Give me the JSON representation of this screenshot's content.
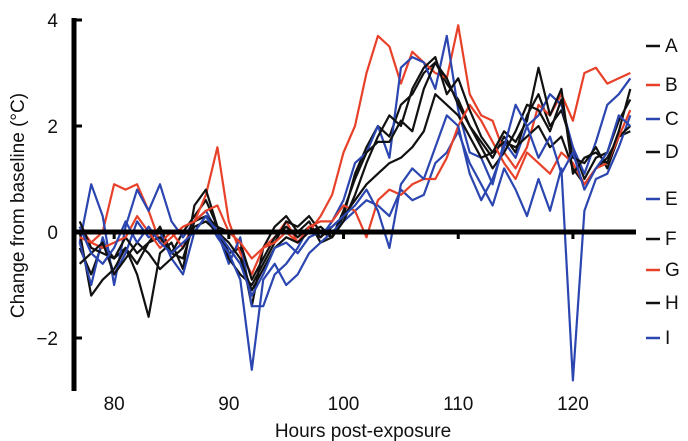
{
  "chart_data": {
    "type": "line",
    "title": "",
    "xlabel": "Hours post-exposure",
    "ylabel": "Change from baseline (°C)",
    "xlim": [
      76.5,
      125.5
    ],
    "ylim": [
      -3,
      4
    ],
    "xticks": [
      80,
      90,
      100,
      110,
      120
    ],
    "yticks": [
      -2,
      0,
      2,
      4
    ],
    "ytick_labels": [
      "−2",
      "0",
      "2",
      "4"
    ],
    "grid": false,
    "legend_position": "right",
    "x": [
      77,
      78,
      79,
      80,
      81,
      82,
      83,
      84,
      85,
      86,
      87,
      88,
      89,
      90,
      91,
      92,
      93,
      94,
      95,
      96,
      97,
      98,
      99,
      100,
      101,
      102,
      103,
      104,
      105,
      106,
      107,
      108,
      109,
      110,
      111,
      112,
      113,
      114,
      115,
      116,
      117,
      118,
      119,
      120,
      121,
      122,
      123,
      124,
      125
    ],
    "series": [
      {
        "name": "A",
        "color": "#111111",
        "values": [
          -0.3,
          -0.8,
          -0.2,
          -0.5,
          -0.3,
          -0.6,
          -0.2,
          0.1,
          -0.4,
          0.0,
          0.3,
          0.6,
          0.1,
          -0.4,
          -0.3,
          -1.4,
          -0.3,
          0.1,
          0.3,
          0.0,
          0.2,
          -0.2,
          -0.1,
          0.3,
          1.1,
          1.6,
          2.0,
          1.8,
          2.4,
          2.6,
          3.0,
          3.2,
          2.8,
          2.5,
          2.0,
          1.7,
          1.4,
          1.8,
          1.5,
          2.2,
          2.6,
          2.0,
          2.3,
          1.6,
          1.0,
          1.4,
          1.5,
          2.1,
          2.5
        ]
      },
      {
        "name": "B",
        "color": "#e8412a",
        "values": [
          0.1,
          -0.2,
          0.0,
          0.9,
          0.8,
          0.9,
          0.4,
          -0.2,
          0.0,
          -0.3,
          0.2,
          0.7,
          1.6,
          0.2,
          -0.4,
          -0.8,
          -0.3,
          -0.1,
          0.2,
          -0.2,
          0.0,
          0.3,
          0.7,
          1.5,
          2.0,
          3.0,
          3.7,
          3.5,
          2.8,
          3.4,
          3.2,
          3.0,
          2.9,
          3.9,
          2.6,
          2.2,
          2.1,
          1.5,
          1.2,
          1.6,
          2.4,
          2.2,
          2.6,
          2.1,
          3.0,
          3.1,
          2.8,
          2.9,
          3.0
        ]
      },
      {
        "name": "C",
        "color": "#2b46b0",
        "values": [
          -0.2,
          0.9,
          0.3,
          -1.0,
          0.1,
          0.8,
          0.4,
          0.9,
          0.2,
          -0.1,
          0.2,
          0.4,
          0.0,
          -0.6,
          -0.1,
          -1.4,
          -1.4,
          -0.8,
          -0.6,
          -0.3,
          0.1,
          -0.1,
          0.2,
          0.6,
          1.3,
          1.5,
          2.0,
          1.4,
          3.1,
          3.3,
          3.2,
          2.7,
          3.7,
          2.3,
          1.5,
          1.4,
          0.9,
          1.7,
          1.4,
          2.0,
          2.2,
          2.6,
          2.4,
          1.6,
          1.1,
          1.7,
          2.4,
          2.6,
          2.9
        ]
      },
      {
        "name": "D",
        "color": "#111111",
        "values": [
          0.0,
          -1.2,
          -0.9,
          -0.7,
          -0.3,
          -0.8,
          -1.6,
          -0.4,
          -0.2,
          -0.7,
          0.5,
          0.8,
          0.1,
          -0.5,
          -0.8,
          -1.0,
          -0.6,
          -0.2,
          0.2,
          0.1,
          0.3,
          0.0,
          -0.1,
          0.4,
          1.0,
          1.5,
          1.7,
          1.7,
          2.1,
          1.9,
          2.7,
          3.2,
          2.9,
          2.4,
          2.0,
          1.6,
          1.2,
          1.5,
          1.9,
          2.4,
          2.3,
          1.9,
          2.5,
          1.4,
          1.3,
          1.6,
          1.2,
          1.8,
          1.9
        ]
      },
      {
        "name": "E",
        "color": "#2b46b0",
        "values": [
          -0.2,
          -1.0,
          -0.1,
          -0.8,
          -0.4,
          0.2,
          -0.1,
          0.0,
          -0.5,
          -0.8,
          0.0,
          0.3,
          -0.1,
          -0.4,
          -0.9,
          -2.6,
          -0.9,
          -0.6,
          -1.0,
          -0.8,
          -0.4,
          -0.2,
          0.0,
          0.2,
          0.4,
          0.6,
          0.5,
          0.3,
          0.8,
          0.6,
          0.7,
          1.3,
          1.5,
          1.9,
          1.3,
          0.9,
          0.5,
          1.2,
          0.8,
          0.3,
          1.0,
          0.4,
          1.2,
          -2.8,
          0.4,
          1.0,
          1.1,
          1.6,
          2.2
        ]
      },
      {
        "name": "F",
        "color": "#111111",
        "values": [
          0.2,
          -0.3,
          -0.4,
          -0.5,
          -0.1,
          -0.4,
          -0.2,
          -0.1,
          -0.4,
          -0.5,
          0.2,
          0.3,
          0.1,
          0.0,
          -0.2,
          -0.9,
          -0.5,
          -0.1,
          0.1,
          -0.1,
          0.1,
          -0.1,
          0.1,
          0.3,
          0.6,
          0.9,
          1.1,
          1.3,
          1.4,
          1.6,
          1.9,
          2.6,
          2.4,
          2.2,
          1.8,
          1.4,
          1.5,
          1.7,
          1.6,
          1.8,
          2.0,
          1.6,
          1.8,
          1.2,
          0.9,
          1.2,
          1.4,
          1.8,
          2.0
        ]
      },
      {
        "name": "G",
        "color": "#e8412a",
        "values": [
          -0.1,
          -0.2,
          -0.3,
          -0.2,
          -0.1,
          0.3,
          0.0,
          -0.3,
          -0.1,
          0.1,
          0.2,
          0.4,
          0.5,
          0.0,
          -0.2,
          -0.5,
          -0.3,
          -0.2,
          0.0,
          -0.2,
          0.1,
          0.2,
          0.2,
          0.5,
          0.4,
          -0.1,
          0.6,
          0.8,
          0.7,
          0.9,
          1.0,
          1.0,
          1.4,
          2.0,
          2.4,
          2.1,
          1.7,
          1.3,
          1.0,
          1.5,
          1.3,
          1.1,
          1.5,
          1.3,
          0.9,
          1.2,
          1.3,
          1.8,
          2.3
        ]
      },
      {
        "name": "H",
        "color": "#111111",
        "values": [
          -0.6,
          -0.4,
          -0.2,
          -0.8,
          -0.5,
          -0.2,
          -0.4,
          -0.7,
          -0.5,
          -0.3,
          0.1,
          0.2,
          0.0,
          -0.2,
          -0.5,
          -1.1,
          -0.7,
          -0.3,
          -0.1,
          -0.2,
          0.0,
          0.1,
          -0.1,
          0.2,
          0.7,
          1.3,
          1.8,
          2.2,
          2.0,
          2.7,
          3.1,
          3.3,
          2.6,
          2.9,
          2.3,
          1.8,
          1.5,
          1.9,
          1.7,
          2.1,
          3.1,
          2.2,
          2.7,
          1.1,
          1.4,
          1.5,
          1.3,
          1.9,
          2.7
        ]
      },
      {
        "name": "I",
        "color": "#2b46b0",
        "values": [
          0.1,
          -0.4,
          -0.6,
          -0.3,
          0.2,
          -0.2,
          0.1,
          -0.2,
          -0.4,
          -0.2,
          0.0,
          0.3,
          0.0,
          -0.3,
          -0.6,
          -1.2,
          -0.8,
          -0.3,
          -0.2,
          -0.4,
          -0.1,
          0.0,
          0.1,
          0.3,
          0.5,
          0.8,
          0.4,
          -0.3,
          0.9,
          1.2,
          1.0,
          1.6,
          2.2,
          2.0,
          1.1,
          0.6,
          1.0,
          1.6,
          2.4,
          2.0,
          1.4,
          1.8,
          1.1,
          1.5,
          0.8,
          1.2,
          1.5,
          2.2,
          2.0
        ]
      }
    ]
  }
}
